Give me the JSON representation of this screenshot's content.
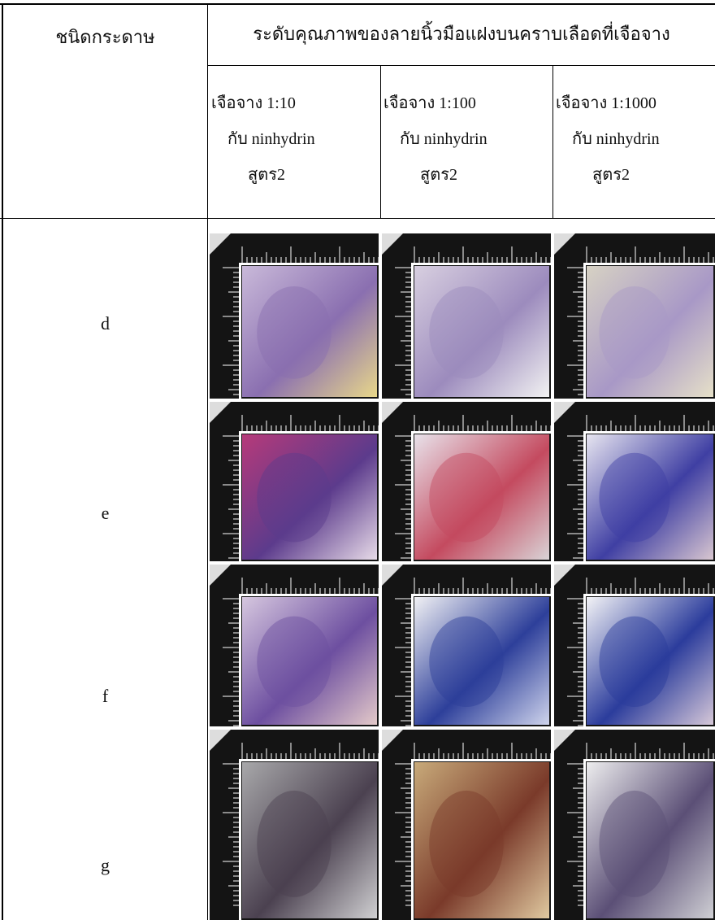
{
  "header": {
    "paper_type": "ชนิดกระดาษ",
    "quality": "ระดับคุณภาพของลายนิ้วมือแฝงบนคราบเลือดที่เจือจาง"
  },
  "subheaders": [
    {
      "dilution": "เจือจาง 1:10",
      "reagent": "กับ ninhydrin",
      "formula": "สูตร2"
    },
    {
      "dilution": "เจือจาง 1:100",
      "reagent": "กับ ninhydrin",
      "formula": "สูตร2"
    },
    {
      "dilution": "เจือจาง 1:1000",
      "reagent": "กับ ninhydrin",
      "formula": "สูตร2"
    }
  ],
  "rows": [
    {
      "label": "d"
    },
    {
      "label": "e"
    },
    {
      "label": "f"
    },
    {
      "label": "g"
    }
  ]
}
